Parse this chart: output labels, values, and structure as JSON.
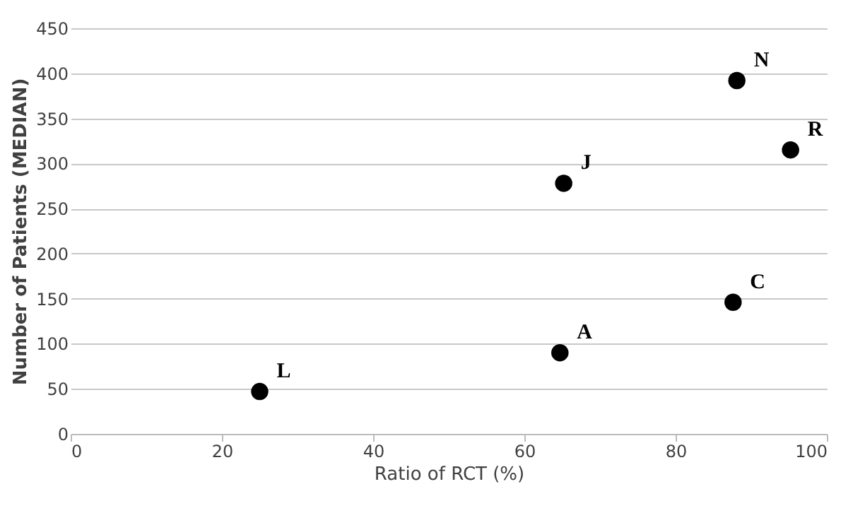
{
  "chart_data": {
    "type": "scatter",
    "xlabel": "Ratio of RCT (%)",
    "ylabel": "Number of Patients (MEDIAN)",
    "x": [
      25,
      64.7,
      65.2,
      87.6,
      88.1,
      95.2
    ],
    "series": [
      {
        "color": "#000000",
        "values": [
          47,
          90,
          278,
          146,
          392,
          315
        ]
      }
    ],
    "xlim": [
      0,
      100
    ],
    "xticks": [
      0,
      20,
      40,
      60,
      80,
      100
    ],
    "ylim": [
      0,
      450
    ],
    "yticks": [
      0,
      50,
      100,
      150,
      200,
      250,
      300,
      350,
      400,
      450
    ],
    "grid": "y",
    "marker": "circle",
    "annotations": [
      {
        "text": "L",
        "x": 25,
        "y": 47
      },
      {
        "text": "A",
        "x": 64.7,
        "y": 90
      },
      {
        "text": "J",
        "x": 65.2,
        "y": 278
      },
      {
        "text": "C",
        "x": 87.6,
        "y": 146
      },
      {
        "text": "N",
        "x": 88.1,
        "y": 392
      },
      {
        "text": "R",
        "x": 95.2,
        "y": 315
      }
    ]
  }
}
